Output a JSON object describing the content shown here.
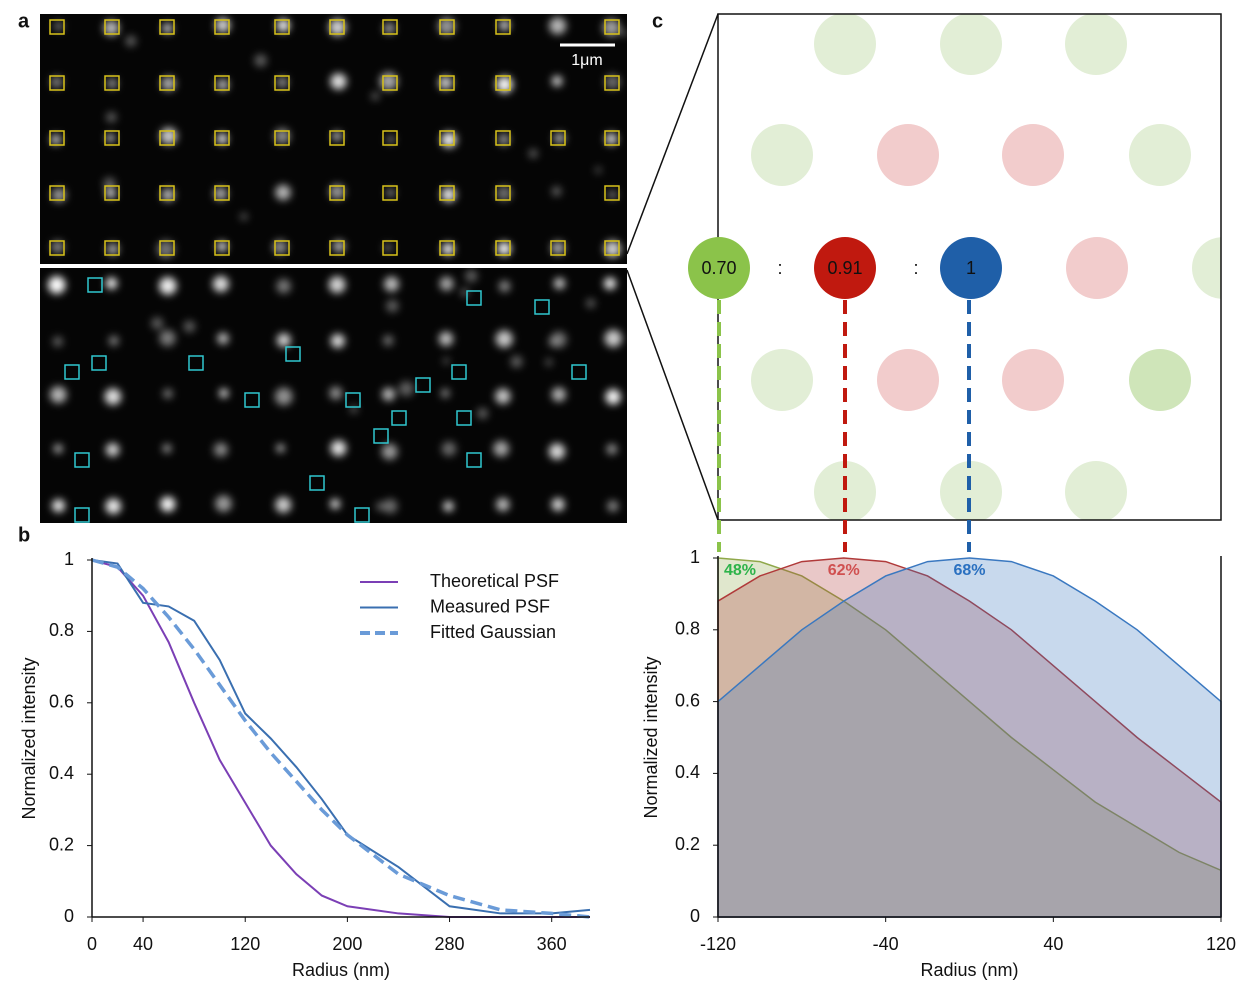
{
  "panels": {
    "a": "a",
    "b": "b",
    "c": "c"
  },
  "scale_bar": "1μm",
  "lattice": {
    "labels": [
      "0.70",
      ":",
      "0.91",
      ":",
      "1"
    ]
  },
  "chart_data": [
    {
      "type": "line",
      "xlabel": "Radius (nm)",
      "ylabel": "Normalized intensity",
      "x": [
        0,
        20,
        40,
        60,
        80,
        100,
        120,
        140,
        160,
        180,
        200,
        240,
        280,
        320,
        360,
        390
      ],
      "xlim": [
        0,
        390
      ],
      "xticks": [
        0,
        40,
        120,
        200,
        280,
        360
      ],
      "ylim": [
        0,
        1
      ],
      "yticks": [
        0,
        0.2,
        0.4,
        0.6,
        0.8,
        1
      ],
      "legend": "upper right",
      "series": [
        {
          "name": "Theoretical PSF",
          "color": "#7b3fb5",
          "dash": false,
          "values": [
            1,
            0.98,
            0.9,
            0.77,
            0.6,
            0.44,
            0.32,
            0.2,
            0.12,
            0.06,
            0.03,
            0.01,
            0,
            0,
            0,
            0
          ]
        },
        {
          "name": "Measured PSF",
          "color": "#3a6fb0",
          "dash": false,
          "values": [
            1,
            0.99,
            0.88,
            0.87,
            0.83,
            0.72,
            0.57,
            0.5,
            0.42,
            0.33,
            0.23,
            0.14,
            0.03,
            0.01,
            0.01,
            0.02
          ]
        },
        {
          "name": "Fitted Gaussian",
          "color": "#6a9bd8",
          "dash": true,
          "values": [
            1,
            0.98,
            0.92,
            0.84,
            0.75,
            0.65,
            0.55,
            0.46,
            0.38,
            0.3,
            0.23,
            0.12,
            0.06,
            0.02,
            0.01,
            0
          ]
        }
      ]
    },
    {
      "type": "area",
      "xlabel": "Radius (nm)",
      "ylabel": "Normalized intensity",
      "x": [
        -120,
        -100,
        -80,
        -60,
        -40,
        -20,
        0,
        20,
        40,
        60,
        80,
        100,
        120
      ],
      "xlim": [
        -120,
        120
      ],
      "xticks": [
        -120,
        -40,
        40,
        120
      ],
      "ylim": [
        0,
        1
      ],
      "yticks": [
        0,
        0.2,
        0.4,
        0.6,
        0.8,
        1
      ],
      "series": [
        {
          "color": "#8fa84a",
          "values": [
            1,
            0.99,
            0.95,
            0.88,
            0.8,
            0.7,
            0.6,
            0.5,
            0.41,
            0.32,
            0.25,
            0.18,
            0.13
          ]
        },
        {
          "color": "#b03a3a",
          "values": [
            0.88,
            0.95,
            0.99,
            1,
            0.99,
            0.95,
            0.88,
            0.8,
            0.7,
            0.6,
            0.5,
            0.41,
            0.32
          ]
        },
        {
          "color": "#3a78c0",
          "values": [
            0.6,
            0.7,
            0.8,
            0.88,
            0.95,
            0.99,
            1,
            0.99,
            0.95,
            0.88,
            0.8,
            0.7,
            0.6
          ]
        }
      ],
      "annotations": [
        {
          "text": "48%",
          "color": "#2db34a"
        },
        {
          "text": "62%",
          "color": "#d05050"
        },
        {
          "text": "68%",
          "color": "#2a70c0"
        }
      ]
    }
  ]
}
